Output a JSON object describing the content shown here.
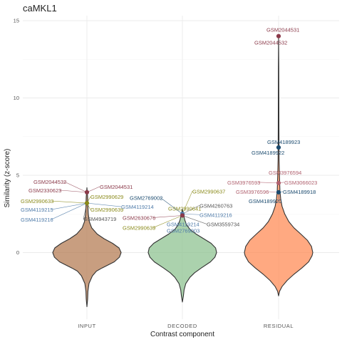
{
  "chart_data": {
    "type": "violin",
    "title": "caMKL1",
    "xlabel": "Contrast component",
    "ylabel": "Similarity (z-score)",
    "ylim": [
      -3.5,
      15.2
    ],
    "yticks": [
      0,
      5,
      10,
      15
    ],
    "grid": true,
    "categories": [
      "INPUT",
      "DECODED",
      "RESIDUAL"
    ],
    "violins": [
      {
        "category": "INPUT",
        "color": "#b57d55",
        "min": -3.5,
        "max": 4.2,
        "profile": [
          [
            -3.5,
            0.0
          ],
          [
            -3.0,
            0.02
          ],
          [
            -2.5,
            0.03
          ],
          [
            -2.0,
            0.06
          ],
          [
            -1.5,
            0.16
          ],
          [
            -1.2,
            0.28
          ],
          [
            -1.0,
            0.44
          ],
          [
            -0.6,
            0.8
          ],
          [
            -0.3,
            0.95
          ],
          [
            0.0,
            1.0
          ],
          [
            0.3,
            0.94
          ],
          [
            0.6,
            0.75
          ],
          [
            0.9,
            0.5
          ],
          [
            1.2,
            0.3
          ],
          [
            1.6,
            0.14
          ],
          [
            2.0,
            0.07
          ],
          [
            2.5,
            0.04
          ],
          [
            3.0,
            0.03
          ],
          [
            3.6,
            0.02
          ],
          [
            4.2,
            0.0
          ]
        ]
      },
      {
        "category": "DECODED",
        "color": "#8fc391",
        "min": -3.2,
        "max": 2.8,
        "profile": [
          [
            -3.2,
            0.0
          ],
          [
            -2.8,
            0.03
          ],
          [
            -2.4,
            0.05
          ],
          [
            -2.0,
            0.1
          ],
          [
            -1.6,
            0.22
          ],
          [
            -1.3,
            0.36
          ],
          [
            -1.0,
            0.55
          ],
          [
            -0.6,
            0.82
          ],
          [
            -0.3,
            0.95
          ],
          [
            0.0,
            1.0
          ],
          [
            0.3,
            0.97
          ],
          [
            0.6,
            0.84
          ],
          [
            0.9,
            0.62
          ],
          [
            1.2,
            0.4
          ],
          [
            1.5,
            0.22
          ],
          [
            1.8,
            0.12
          ],
          [
            2.1,
            0.07
          ],
          [
            2.4,
            0.04
          ],
          [
            2.8,
            0.0
          ]
        ]
      },
      {
        "category": "RESIDUAL",
        "color": "#ff8c57",
        "min": -2.8,
        "max": 14.0,
        "profile": [
          [
            -2.8,
            0.0
          ],
          [
            -2.5,
            0.03
          ],
          [
            -2.2,
            0.1
          ],
          [
            -1.8,
            0.25
          ],
          [
            -1.4,
            0.45
          ],
          [
            -1.0,
            0.68
          ],
          [
            -0.6,
            0.88
          ],
          [
            -0.2,
            0.98
          ],
          [
            0.0,
            1.0
          ],
          [
            0.4,
            0.96
          ],
          [
            0.8,
            0.84
          ],
          [
            1.2,
            0.65
          ],
          [
            1.6,
            0.45
          ],
          [
            2.0,
            0.3
          ],
          [
            2.5,
            0.18
          ],
          [
            3.0,
            0.1
          ],
          [
            3.5,
            0.06
          ],
          [
            4.0,
            0.04
          ],
          [
            5.0,
            0.025
          ],
          [
            6.0,
            0.015
          ],
          [
            8.0,
            0.01
          ],
          [
            10.0,
            0.008
          ],
          [
            12.0,
            0.006
          ],
          [
            14.0,
            0.0
          ]
        ]
      }
    ],
    "points": [
      {
        "category": "INPUT",
        "y": 3.9,
        "color": "#8b3a4a"
      },
      {
        "category": "INPUT",
        "y": 3.2,
        "color": "#8a8a1a"
      },
      {
        "category": "DECODED",
        "y": 2.5,
        "color": "#4e7aa8"
      },
      {
        "category": "DECODED",
        "y": 2.4,
        "color": "#8b3a4a"
      },
      {
        "category": "RESIDUAL",
        "y": 14.0,
        "color": "#8b3a4a"
      },
      {
        "category": "RESIDUAL",
        "y": 6.8,
        "color": "#1a4a6e"
      },
      {
        "category": "RESIDUAL",
        "y": 4.5,
        "color": "#b0606e"
      },
      {
        "category": "RESIDUAL",
        "y": 3.9,
        "color": "#1a4a6e"
      }
    ],
    "annotations": [
      {
        "category": "INPUT",
        "y": 3.9,
        "text": "GSM2044532",
        "dx": -75,
        "dy": -12,
        "color": "#8b3a4a"
      },
      {
        "category": "INPUT",
        "y": 3.9,
        "text": "GSM2044531",
        "dx": 18,
        "dy": -5,
        "color": "#8b3a4a"
      },
      {
        "category": "INPUT",
        "y": 3.9,
        "text": "GSM2330623",
        "dx": -82,
        "dy": 0,
        "color": "#8b3a4a"
      },
      {
        "category": "INPUT",
        "y": 3.2,
        "text": "GSM2990629",
        "dx": 5,
        "dy": -6,
        "color": "#8a8a1a"
      },
      {
        "category": "INPUT",
        "y": 3.2,
        "text": "GSM2990633",
        "dx": -93,
        "dy": 0,
        "color": "#8a8a1a"
      },
      {
        "category": "INPUT",
        "y": 3.2,
        "text": "GSM2990639",
        "dx": 5,
        "dy": 12,
        "color": "#8a8a1a"
      },
      {
        "category": "INPUT",
        "y": 3.2,
        "text": "GSM4119215",
        "dx": -93,
        "dy": 12,
        "color": "#4e7aa8"
      },
      {
        "category": "INPUT",
        "y": 3.2,
        "text": "GSM4119214",
        "dx": 48,
        "dy": 8,
        "color": "#4e7aa8"
      },
      {
        "category": "INPUT",
        "y": 3.2,
        "text": "GSM4119216",
        "dx": -93,
        "dy": 26,
        "color": "#4e7aa8"
      },
      {
        "category": "INPUT",
        "y": 3.2,
        "text": "GSM4943719",
        "dx": -5,
        "dy": 25,
        "color": "#555555"
      },
      {
        "category": "DECODED",
        "y": 2.5,
        "text": "GSM2990637",
        "dx": 14,
        "dy": -29,
        "color": "#8a8a1a"
      },
      {
        "category": "DECODED",
        "y": 2.5,
        "text": "GSM2769002",
        "dx": -74,
        "dy": -20,
        "color": "#1a4a6e"
      },
      {
        "category": "DECODED",
        "y": 2.5,
        "text": "GSM4260763",
        "dx": 24,
        "dy": -9,
        "color": "#555555"
      },
      {
        "category": "DECODED",
        "y": 2.5,
        "text": "GSM2990641",
        "dx": -20,
        "dy": -5,
        "color": "#8a8a1a"
      },
      {
        "category": "DECODED",
        "y": 2.5,
        "text": "GSM4119216",
        "dx": 24,
        "dy": 4,
        "color": "#4e7aa8"
      },
      {
        "category": "DECODED",
        "y": 2.4,
        "text": "GSM2630676",
        "dx": -84,
        "dy": 6,
        "color": "#8b3a4a"
      },
      {
        "category": "DECODED",
        "y": 2.4,
        "text": "GSM4119214",
        "dx": -22,
        "dy": 15,
        "color": "#4e7aa8"
      },
      {
        "category": "DECODED",
        "y": 2.4,
        "text": "GSM3559734",
        "dx": 34,
        "dy": 15,
        "color": "#555555"
      },
      {
        "category": "DECODED",
        "y": 2.4,
        "text": "GSM2990639",
        "dx": -84,
        "dy": 20,
        "color": "#8a8a1a"
      },
      {
        "category": "DECODED",
        "y": 2.4,
        "text": "GSM2769003",
        "dx": -22,
        "dy": 24,
        "color": "#4e7aa8"
      },
      {
        "category": "RESIDUAL",
        "y": 14.0,
        "text": "GSM2044531",
        "dx": -17,
        "dy": -6,
        "color": "#8b3a4a"
      },
      {
        "category": "RESIDUAL",
        "y": 14.0,
        "text": "GSM2044532",
        "dx": -34,
        "dy": 12,
        "color": "#8b3a4a"
      },
      {
        "category": "RESIDUAL",
        "y": 6.8,
        "text": "GSM4189923",
        "dx": -16,
        "dy": -5,
        "color": "#1a4a6e"
      },
      {
        "category": "RESIDUAL",
        "y": 6.8,
        "text": "GSM4189922",
        "dx": -38,
        "dy": 10,
        "color": "#1a4a6e"
      },
      {
        "category": "RESIDUAL",
        "y": 4.5,
        "text": "GSM3976594",
        "dx": -14,
        "dy": -12,
        "color": "#b0606e"
      },
      {
        "category": "RESIDUAL",
        "y": 4.5,
        "text": "GSM3976593",
        "dx": -72,
        "dy": 2,
        "color": "#b0606e"
      },
      {
        "category": "RESIDUAL",
        "y": 4.5,
        "text": "GSM3066023",
        "dx": 8,
        "dy": 2,
        "color": "#b0606e"
      },
      {
        "category": "RESIDUAL",
        "y": 3.9,
        "text": "GSM3976596",
        "dx": -60,
        "dy": 2,
        "color": "#b0606e"
      },
      {
        "category": "RESIDUAL",
        "y": 3.9,
        "text": "GSM4189918",
        "dx": 6,
        "dy": 2,
        "color": "#1a4a6e"
      },
      {
        "category": "RESIDUAL",
        "y": 3.9,
        "text": "GSM4189920",
        "dx": -42,
        "dy": 15,
        "color": "#1a4a6e"
      }
    ]
  }
}
